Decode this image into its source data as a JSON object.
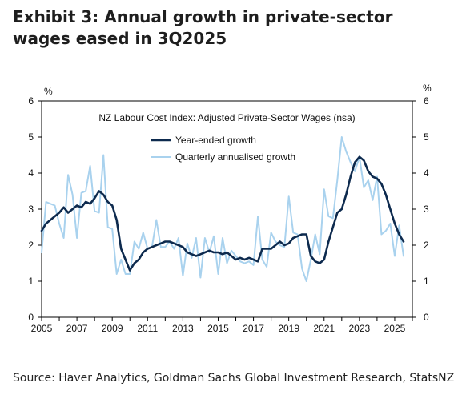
{
  "heading": "Exhibit 3: Annual growth in private-sector wages eased in 3Q2025",
  "source": "Source: Haver Analytics, Goldman Sachs Global Investment Research, StatsNZ",
  "chart_data": {
    "type": "line",
    "title": "NZ Labour Cost Index: Adjusted Private-Sector Wages (nsa)",
    "ylabel_left": "%",
    "ylabel_right": "%",
    "ylim": [
      0,
      6
    ],
    "yticks": [
      0,
      1,
      2,
      3,
      4,
      5,
      6
    ],
    "xlim": [
      2005,
      2026
    ],
    "xticks": [
      2005,
      2007,
      2009,
      2011,
      2013,
      2015,
      2017,
      2019,
      2021,
      2023,
      2025
    ],
    "grid": false,
    "legend_position": "top-center",
    "series": [
      {
        "name": "Year-ended growth",
        "color": "#0d2a4e",
        "x": [
          2005.0,
          2005.25,
          2005.5,
          2005.75,
          2006.0,
          2006.25,
          2006.5,
          2006.75,
          2007.0,
          2007.25,
          2007.5,
          2007.75,
          2008.0,
          2008.25,
          2008.5,
          2008.75,
          2009.0,
          2009.25,
          2009.5,
          2009.75,
          2010.0,
          2010.25,
          2010.5,
          2010.75,
          2011.0,
          2011.25,
          2011.5,
          2011.75,
          2012.0,
          2012.25,
          2012.5,
          2012.75,
          2013.0,
          2013.25,
          2013.5,
          2013.75,
          2014.0,
          2014.25,
          2014.5,
          2014.75,
          2015.0,
          2015.25,
          2015.5,
          2015.75,
          2016.0,
          2016.25,
          2016.5,
          2016.75,
          2017.0,
          2017.25,
          2017.5,
          2017.75,
          2018.0,
          2018.25,
          2018.5,
          2018.75,
          2019.0,
          2019.25,
          2019.5,
          2019.75,
          2020.0,
          2020.25,
          2020.5,
          2020.75,
          2021.0,
          2021.25,
          2021.5,
          2021.75,
          2022.0,
          2022.25,
          2022.5,
          2022.75,
          2023.0,
          2023.25,
          2023.5,
          2023.75,
          2024.0,
          2024.25,
          2024.5,
          2024.75,
          2025.0,
          2025.25,
          2025.5
        ],
        "values": [
          2.4,
          2.6,
          2.7,
          2.8,
          2.9,
          3.05,
          2.9,
          3.0,
          3.1,
          3.05,
          3.2,
          3.15,
          3.3,
          3.5,
          3.4,
          3.2,
          3.1,
          2.7,
          1.9,
          1.6,
          1.3,
          1.5,
          1.6,
          1.8,
          1.9,
          1.95,
          2.0,
          2.05,
          2.1,
          2.1,
          2.05,
          2.0,
          1.95,
          1.8,
          1.75,
          1.7,
          1.75,
          1.8,
          1.85,
          1.8,
          1.8,
          1.75,
          1.8,
          1.7,
          1.6,
          1.65,
          1.6,
          1.65,
          1.6,
          1.55,
          1.9,
          1.9,
          1.9,
          2.0,
          2.1,
          2.0,
          2.05,
          2.2,
          2.25,
          2.3,
          2.3,
          1.7,
          1.55,
          1.5,
          1.6,
          2.1,
          2.5,
          2.9,
          3.0,
          3.4,
          3.9,
          4.3,
          4.45,
          4.35,
          4.05,
          3.9,
          3.85,
          3.7,
          3.4,
          3.0,
          2.6,
          2.3,
          2.1
        ]
      },
      {
        "name": "Quarterly annualised growth",
        "color": "#a9d2ee",
        "x": [
          2005.0,
          2005.25,
          2005.5,
          2005.75,
          2006.0,
          2006.25,
          2006.5,
          2006.75,
          2007.0,
          2007.25,
          2007.5,
          2007.75,
          2008.0,
          2008.25,
          2008.5,
          2008.75,
          2009.0,
          2009.25,
          2009.5,
          2009.75,
          2010.0,
          2010.25,
          2010.5,
          2010.75,
          2011.0,
          2011.25,
          2011.5,
          2011.75,
          2012.0,
          2012.25,
          2012.5,
          2012.75,
          2013.0,
          2013.25,
          2013.5,
          2013.75,
          2014.0,
          2014.25,
          2014.5,
          2014.75,
          2015.0,
          2015.25,
          2015.5,
          2015.75,
          2016.0,
          2016.25,
          2016.5,
          2016.75,
          2017.0,
          2017.25,
          2017.5,
          2017.75,
          2018.0,
          2018.25,
          2018.5,
          2018.75,
          2019.0,
          2019.25,
          2019.5,
          2019.75,
          2020.0,
          2020.25,
          2020.5,
          2020.75,
          2021.0,
          2021.25,
          2021.5,
          2021.75,
          2022.0,
          2022.25,
          2022.5,
          2022.75,
          2023.0,
          2023.25,
          2023.5,
          2023.75,
          2024.0,
          2024.25,
          2024.5,
          2024.75,
          2025.0,
          2025.25,
          2025.5
        ],
        "values": [
          1.8,
          3.2,
          3.15,
          3.1,
          2.6,
          2.2,
          3.95,
          3.4,
          2.2,
          3.45,
          3.5,
          4.2,
          2.95,
          2.9,
          4.5,
          2.5,
          2.45,
          1.2,
          1.6,
          1.2,
          1.2,
          2.1,
          1.9,
          2.35,
          1.9,
          1.95,
          2.7,
          1.95,
          1.95,
          2.1,
          1.9,
          2.2,
          1.15,
          2.05,
          1.65,
          2.2,
          1.1,
          2.2,
          1.8,
          2.25,
          1.2,
          2.2,
          1.5,
          1.85,
          1.7,
          1.55,
          1.5,
          1.55,
          1.45,
          2.8,
          1.6,
          1.4,
          2.35,
          2.1,
          2.0,
          1.95,
          3.35,
          2.35,
          2.3,
          1.35,
          1.0,
          1.6,
          2.3,
          1.75,
          3.55,
          2.8,
          2.75,
          3.8,
          5.0,
          4.6,
          4.3,
          4.05,
          4.45,
          3.6,
          3.8,
          3.25,
          3.9,
          2.3,
          2.4,
          2.6,
          1.7,
          2.55,
          1.7
        ]
      }
    ]
  }
}
